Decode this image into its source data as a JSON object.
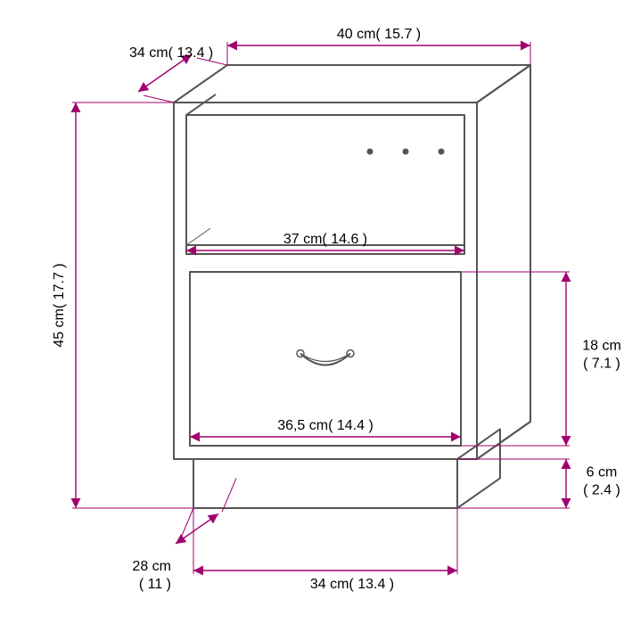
{
  "diagram": {
    "type": "technical-drawing",
    "unit": "cm",
    "background_color": "#ffffff",
    "line_color": "#000000",
    "dimension_color": "#a0006e",
    "text_color": "#000000",
    "arrow_size": 8,
    "line_width": 1.5,
    "dimension_line_width": 1.4,
    "font_size": 16,
    "dimensions": {
      "depth_top": {
        "label": "34 cm( 13.4 )"
      },
      "width_top": {
        "label": "40 cm( 15.7 )"
      },
      "height_left": {
        "label": "45 cm( 17.7 )"
      },
      "shelf_width": {
        "label": "37 cm( 14.6 )"
      },
      "drawer_width": {
        "label": "36,5 cm( 14.4 )"
      },
      "drawer_height": {
        "label": "18 cm( 7.1 )"
      },
      "base_height": {
        "label": "6 cm( 2.4 )"
      },
      "base_width": {
        "label": "34 cm( 13.4 )"
      },
      "base_depth": {
        "label": "28 cm( 11 )"
      }
    },
    "furniture": {
      "outline_color": "#555555",
      "outline_width": 2,
      "hole_fill": "#555555"
    }
  }
}
